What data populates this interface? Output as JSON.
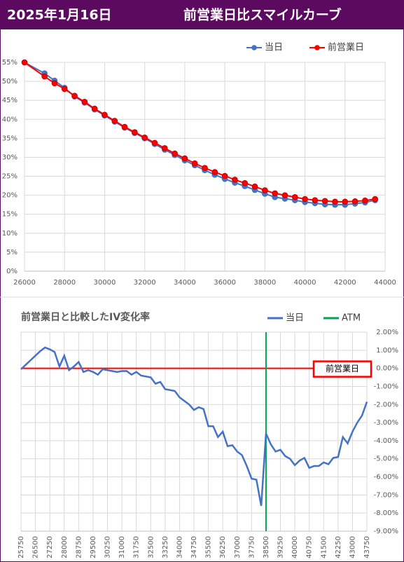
{
  "header": {
    "date": "2025年1月16日",
    "title": "前営業日比スマイルカーブ"
  },
  "chart_data": [
    {
      "type": "line",
      "marker": true,
      "grid": true,
      "x": [
        26000,
        27000,
        27500,
        28000,
        28500,
        29000,
        29500,
        30000,
        30500,
        31000,
        31500,
        32000,
        32500,
        33000,
        33500,
        34000,
        34500,
        35000,
        35500,
        36000,
        36500,
        37000,
        37500,
        38000,
        38500,
        39000,
        39500,
        40000,
        40500,
        41000,
        41500,
        42000,
        42500,
        43000,
        43500
      ],
      "series": [
        {
          "name": "当日",
          "color": "#4472c4",
          "values": [
            55,
            52.1,
            50.2,
            48.3,
            46.0,
            44.4,
            42.6,
            41.0,
            39.4,
            37.8,
            36.4,
            35.0,
            33.5,
            32.0,
            30.6,
            29.2,
            27.9,
            26.6,
            25.4,
            24.3,
            23.3,
            22.4,
            21.4,
            20.4,
            19.5,
            19.1,
            18.7,
            18.2,
            17.9,
            17.6,
            17.5,
            17.5,
            17.8,
            18.1,
            18.7
          ]
        },
        {
          "name": "前営業日",
          "color": "#ff0000",
          "values": [
            55,
            51.3,
            49.5,
            48.0,
            46.2,
            44.6,
            42.8,
            41.2,
            39.6,
            38.0,
            36.6,
            35.2,
            33.8,
            32.4,
            31.0,
            29.7,
            28.4,
            27.2,
            26.1,
            25.1,
            24.1,
            23.2,
            22.3,
            21.3,
            20.5,
            20.0,
            19.5,
            19.0,
            18.7,
            18.5,
            18.3,
            18.3,
            18.4,
            18.6,
            19.0
          ]
        }
      ],
      "xlim": [
        26000,
        44000
      ],
      "xticks": [
        26000,
        28000,
        30000,
        32000,
        34000,
        36000,
        38000,
        40000,
        42000,
        44000
      ],
      "ylim": [
        0,
        55
      ],
      "yticks": [
        {
          "value": 0,
          "label": "0%"
        },
        {
          "value": 5,
          "label": "5%"
        },
        {
          "value": 10,
          "label": "10%"
        },
        {
          "value": 15,
          "label": "15%"
        },
        {
          "value": 20,
          "label": "20%"
        },
        {
          "value": 25,
          "label": "25%"
        },
        {
          "value": 30,
          "label": "30%"
        },
        {
          "value": 35,
          "label": "35%"
        },
        {
          "value": 40,
          "label": "40%"
        },
        {
          "value": 45,
          "label": "45%"
        },
        {
          "value": 50,
          "label": "50%"
        },
        {
          "value": 55,
          "label": "55%"
        }
      ],
      "legend": "top-right"
    },
    {
      "type": "line",
      "marker": false,
      "grid": true,
      "title": "前営業日と比較したIV変化率",
      "x": [
        25750,
        26000,
        26250,
        26500,
        26750,
        27000,
        27250,
        27500,
        27750,
        28000,
        28250,
        28500,
        28750,
        29000,
        29250,
        29500,
        29750,
        30000,
        30250,
        30500,
        30750,
        31000,
        31250,
        31500,
        31750,
        32000,
        32250,
        32500,
        32750,
        33000,
        33250,
        33500,
        33750,
        34000,
        34250,
        34500,
        34750,
        35000,
        35250,
        35500,
        35750,
        36000,
        36250,
        36500,
        36750,
        37000,
        37250,
        37500,
        37750,
        38000,
        38250,
        38500,
        38750,
        39000,
        39250,
        39500,
        39750,
        40000,
        40250,
        40500,
        40750,
        41000,
        41250,
        41500,
        41750,
        42000,
        42250,
        42500,
        42750,
        43000,
        43250,
        43500,
        43750
      ],
      "series": [
        {
          "name": "当日",
          "color": "#4472c4",
          "values": [
            -0.05,
            0.2,
            0.45,
            0.7,
            0.95,
            1.15,
            1.05,
            0.9,
            0.1,
            0.7,
            -0.1,
            0.1,
            0.35,
            -0.2,
            -0.1,
            -0.2,
            -0.35,
            -0.05,
            -0.1,
            -0.15,
            -0.2,
            -0.15,
            -0.15,
            -0.35,
            -0.2,
            -0.4,
            -0.45,
            -0.5,
            -0.85,
            -0.75,
            -1.15,
            -1.2,
            -1.25,
            -1.6,
            -1.8,
            -2.0,
            -2.3,
            -2.15,
            -2.25,
            -3.2,
            -3.2,
            -3.8,
            -3.5,
            -4.3,
            -4.25,
            -4.6,
            -4.8,
            -5.4,
            -6.1,
            -6.15,
            -7.6,
            -3.6,
            -4.2,
            -4.6,
            -4.5,
            -4.85,
            -5.0,
            -5.35,
            -5.1,
            -4.95,
            -5.5,
            -5.4,
            -5.4,
            -5.2,
            -5.3,
            -4.95,
            -4.9,
            -3.8,
            -4.15,
            -3.5,
            -3.0,
            -2.6,
            -1.85
          ]
        }
      ],
      "atm": {
        "name": "ATM",
        "x": 38500,
        "color": "#00a550"
      },
      "reference_line": {
        "label": "前営業日",
        "value": 0,
        "color": "#ff0000"
      },
      "xlim": [
        25750,
        43750
      ],
      "xticks": [
        25750,
        26500,
        27250,
        28000,
        28750,
        29500,
        30250,
        31000,
        31750,
        32500,
        33250,
        34000,
        34750,
        35500,
        36250,
        37000,
        37750,
        38500,
        39250,
        40000,
        40750,
        41500,
        42250,
        43000,
        43750
      ],
      "ylim": [
        -9,
        2
      ],
      "yticks": [
        {
          "value": 2,
          "label": "2.00%"
        },
        {
          "value": 1,
          "label": "1.00%"
        },
        {
          "value": 0,
          "label": "0.00%"
        },
        {
          "value": -1,
          "label": "-1.00%"
        },
        {
          "value": -2,
          "label": "-2.00%"
        },
        {
          "value": -3,
          "label": "-3.00%"
        },
        {
          "value": -4,
          "label": "-4.00%"
        },
        {
          "value": -5,
          "label": "-5.00%"
        },
        {
          "value": -6,
          "label": "-6.00%"
        },
        {
          "value": -7,
          "label": "-7.00%"
        },
        {
          "value": -8,
          "label": "-8.00%"
        },
        {
          "value": -9,
          "label": "-9.00%"
        }
      ],
      "legend": "top-right"
    }
  ]
}
